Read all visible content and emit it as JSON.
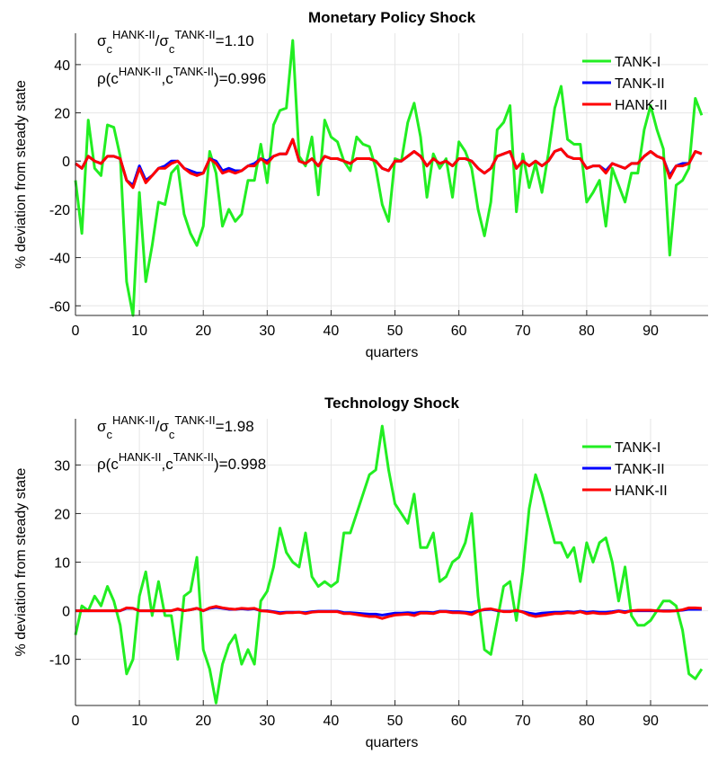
{
  "chart_data": [
    {
      "type": "line",
      "title": "Monetary Policy Shock",
      "x_label": "quarters",
      "y_label": "% deviation from steady state",
      "ratio_annotation": [
        "σ",
        "c",
        "HANK-II",
        "/σ",
        "c",
        "TANK-II",
        "=1.10"
      ],
      "corr_annotation": [
        "ρ(c",
        "HANK-II",
        ",c",
        "TANK-II",
        ")=0.996"
      ],
      "x": [
        0,
        1,
        2,
        3,
        4,
        5,
        6,
        7,
        8,
        9,
        10,
        11,
        12,
        13,
        14,
        15,
        16,
        17,
        18,
        19,
        20,
        21,
        22,
        23,
        24,
        25,
        26,
        27,
        28,
        29,
        30,
        31,
        32,
        33,
        34,
        35,
        36,
        37,
        38,
        39,
        40,
        41,
        42,
        43,
        44,
        45,
        46,
        47,
        48,
        49,
        50,
        51,
        52,
        53,
        54,
        55,
        56,
        57,
        58,
        59,
        60,
        61,
        62,
        63,
        64,
        65,
        66,
        67,
        68,
        69,
        70,
        71,
        72,
        73,
        74,
        75,
        76,
        77,
        78,
        79,
        80,
        81,
        82,
        83,
        84,
        85,
        86,
        87,
        88,
        89,
        90,
        91,
        92,
        93,
        94,
        95,
        96,
        97,
        98
      ],
      "xlim": [
        0,
        99
      ],
      "xticks": [
        0,
        10,
        20,
        30,
        40,
        50,
        60,
        70,
        80,
        90
      ],
      "ylim": [
        -64,
        53
      ],
      "yticks": [
        -60,
        -40,
        -20,
        0,
        20,
        40
      ],
      "grid": true,
      "legend": "upper right",
      "series": [
        {
          "name": "TANK-I",
          "color": "#22ee22",
          "values": [
            -8,
            -30,
            17,
            -3,
            -6,
            15,
            14,
            2,
            -50,
            -64,
            -13,
            -50,
            -35,
            -17,
            -18,
            -5,
            -2,
            -22,
            -30,
            -35,
            -27,
            4,
            -5,
            -27,
            -20,
            -25,
            -22,
            -8,
            -8,
            7,
            -9,
            15,
            21,
            22,
            50,
            2,
            -2,
            10,
            -14,
            17,
            10,
            8,
            0,
            -4,
            10,
            7,
            6,
            -3,
            -18,
            -25,
            1,
            0,
            16,
            24,
            10,
            -15,
            3,
            -3,
            1,
            -15,
            8,
            4,
            -3,
            -20,
            -31,
            -17,
            13,
            16,
            23,
            -21,
            3,
            -11,
            -1,
            -13,
            3,
            22,
            31,
            9,
            7,
            7,
            -17,
            -13,
            -8,
            -27,
            -3,
            -10,
            -17,
            -5,
            -5,
            13,
            23,
            13,
            5,
            -39,
            -10,
            -8,
            -3,
            26,
            19
          ]
        },
        {
          "name": "TANK-II",
          "color": "#0000ff",
          "values": [
            -1,
            -3,
            2,
            0,
            -1,
            2,
            2,
            1,
            -8,
            -10,
            -2,
            -8,
            -6,
            -3,
            -2,
            0,
            0,
            -3,
            -4,
            -5,
            -5,
            1,
            0,
            -4,
            -3,
            -4,
            -4,
            -2,
            -1,
            1,
            0,
            2,
            3,
            3,
            9,
            0,
            -1,
            1,
            -2,
            2,
            1,
            1,
            0,
            -1,
            1,
            1,
            1,
            0,
            -3,
            -4,
            0,
            0,
            2,
            4,
            2,
            -2,
            1,
            -1,
            0,
            -2,
            1,
            1,
            0,
            -3,
            -5,
            -3,
            2,
            3,
            4,
            -3,
            0,
            -2,
            0,
            -2,
            0,
            4,
            5,
            2,
            1,
            1,
            -3,
            -2,
            -2,
            -4,
            -1,
            -2,
            -3,
            -1,
            -1,
            2,
            4,
            2,
            1,
            -6,
            -2,
            -1,
            -1,
            4,
            3
          ]
        },
        {
          "name": "HANK-II",
          "color": "#ff0000",
          "values": [
            -1,
            -3,
            2,
            0,
            -1,
            2,
            2,
            1,
            -8,
            -11,
            -3,
            -9,
            -6,
            -3,
            -3,
            -1,
            0,
            -3,
            -5,
            -6,
            -5,
            1,
            -1,
            -5,
            -4,
            -5,
            -4,
            -2,
            -2,
            1,
            -1,
            2,
            3,
            3,
            9,
            0,
            -1,
            1,
            -2,
            2,
            1,
            1,
            0,
            -1,
            1,
            1,
            1,
            0,
            -3,
            -4,
            0,
            0,
            2,
            4,
            2,
            -2,
            1,
            -1,
            0,
            -2,
            1,
            1,
            0,
            -3,
            -5,
            -3,
            2,
            3,
            4,
            -3,
            0,
            -2,
            0,
            -2,
            0,
            4,
            5,
            2,
            1,
            1,
            -3,
            -2,
            -2,
            -5,
            -1,
            -2,
            -3,
            -1,
            -1,
            2,
            4,
            2,
            1,
            -7,
            -2,
            -2,
            -1,
            4,
            3
          ]
        }
      ]
    },
    {
      "type": "line",
      "title": "Technology Shock",
      "x_label": "quarters",
      "y_label": "% deviation from steady state",
      "ratio_annotation": [
        "σ",
        "c",
        "HANK-II",
        "/σ",
        "c",
        "TANK-II",
        "=1.98"
      ],
      "corr_annotation": [
        "ρ(c",
        "HANK-II",
        ",c",
        "TANK-II",
        ")=0.998"
      ],
      "x": [
        0,
        1,
        2,
        3,
        4,
        5,
        6,
        7,
        8,
        9,
        10,
        11,
        12,
        13,
        14,
        15,
        16,
        17,
        18,
        19,
        20,
        21,
        22,
        23,
        24,
        25,
        26,
        27,
        28,
        29,
        30,
        31,
        32,
        33,
        34,
        35,
        36,
        37,
        38,
        39,
        40,
        41,
        42,
        43,
        44,
        45,
        46,
        47,
        48,
        49,
        50,
        51,
        52,
        53,
        54,
        55,
        56,
        57,
        58,
        59,
        60,
        61,
        62,
        63,
        64,
        65,
        66,
        67,
        68,
        69,
        70,
        71,
        72,
        73,
        74,
        75,
        76,
        77,
        78,
        79,
        80,
        81,
        82,
        83,
        84,
        85,
        86,
        87,
        88,
        89,
        90,
        91,
        92,
        93,
        94,
        95,
        96,
        97,
        98
      ],
      "xlim": [
        0,
        99
      ],
      "xticks": [
        0,
        10,
        20,
        30,
        40,
        50,
        60,
        70,
        80,
        90
      ],
      "ylim": [
        -19.5,
        39.5
      ],
      "yticks": [
        -10,
        0,
        10,
        20,
        30
      ],
      "grid": true,
      "legend": "upper right",
      "series": [
        {
          "name": "TANK-I",
          "color": "#22ee22",
          "values": [
            -5,
            1,
            0,
            3,
            1,
            5,
            2,
            -3,
            -13,
            -10,
            3,
            8,
            -1,
            6,
            -1,
            -1,
            -10,
            3,
            4,
            11,
            -8,
            -12,
            -19,
            -11,
            -7,
            -5,
            -11,
            -8,
            -11,
            2,
            4,
            9,
            17,
            12,
            10,
            9,
            16,
            7,
            5,
            6,
            5,
            6,
            16,
            16,
            20,
            24,
            28,
            29,
            38,
            29,
            22,
            20,
            18,
            24,
            13,
            13,
            16,
            6,
            7,
            10,
            11,
            14,
            20,
            3,
            -8,
            -9,
            -2,
            5,
            6,
            -2,
            8,
            21,
            28,
            24,
            19,
            14,
            14,
            11,
            13,
            6,
            14,
            10,
            14,
            15,
            10,
            2,
            9,
            -1,
            -3,
            -3,
            -2,
            0,
            2,
            2,
            1,
            -4,
            -13,
            -14,
            -12
          ]
        },
        {
          "name": "TANK-II",
          "color": "#0000ff",
          "values": [
            0,
            0,
            0,
            0,
            0,
            0,
            0,
            0,
            0.5,
            0.5,
            0,
            0,
            0,
            0,
            0,
            0,
            0.3,
            0,
            0.2,
            0.5,
            0,
            0.5,
            0.7,
            0.5,
            0.3,
            0.3,
            0.4,
            0.3,
            0.4,
            0,
            0,
            -0.2,
            -0.4,
            -0.3,
            -0.3,
            -0.3,
            -0.4,
            -0.2,
            -0.1,
            -0.1,
            -0.1,
            -0.1,
            -0.4,
            -0.4,
            -0.5,
            -0.6,
            -0.7,
            -0.7,
            -0.9,
            -0.7,
            -0.5,
            -0.5,
            -0.4,
            -0.5,
            -0.3,
            -0.3,
            -0.4,
            -0.1,
            -0.1,
            -0.2,
            -0.2,
            -0.3,
            -0.4,
            0,
            0.2,
            0.3,
            0,
            -0.1,
            -0.1,
            0,
            -0.2,
            -0.5,
            -0.7,
            -0.5,
            -0.4,
            -0.3,
            -0.3,
            -0.2,
            -0.3,
            -0.1,
            -0.3,
            -0.2,
            -0.3,
            -0.3,
            -0.2,
            0,
            -0.2,
            0,
            0,
            0,
            0,
            0,
            0,
            0,
            0,
            0.1,
            0.3,
            0.3,
            0.3
          ]
        },
        {
          "name": "HANK-II",
          "color": "#ff0000",
          "values": [
            0,
            0,
            0,
            0,
            0,
            0,
            0,
            0,
            0.6,
            0.5,
            0,
            0,
            0,
            0,
            0,
            0,
            0.4,
            0,
            0.2,
            0.5,
            0,
            0.6,
            0.9,
            0.6,
            0.4,
            0.3,
            0.5,
            0.4,
            0.5,
            0,
            -0.1,
            -0.3,
            -0.6,
            -0.4,
            -0.4,
            -0.3,
            -0.6,
            -0.3,
            -0.2,
            -0.2,
            -0.2,
            -0.2,
            -0.6,
            -0.6,
            -0.8,
            -1,
            -1.2,
            -1.2,
            -1.6,
            -1.2,
            -0.9,
            -0.8,
            -0.7,
            -1,
            -0.5,
            -0.5,
            -0.6,
            -0.2,
            -0.2,
            -0.4,
            -0.4,
            -0.5,
            -0.8,
            -0.1,
            0.3,
            0.4,
            0.1,
            -0.2,
            -0.2,
            0.1,
            -0.3,
            -0.9,
            -1.2,
            -1,
            -0.8,
            -0.6,
            -0.6,
            -0.4,
            -0.5,
            -0.2,
            -0.6,
            -0.4,
            -0.6,
            -0.6,
            -0.4,
            -0.1,
            -0.4,
            0,
            0.1,
            0.1,
            0.1,
            0,
            -0.1,
            -0.1,
            0,
            0.2,
            0.6,
            0.6,
            0.5
          ]
        }
      ]
    }
  ]
}
